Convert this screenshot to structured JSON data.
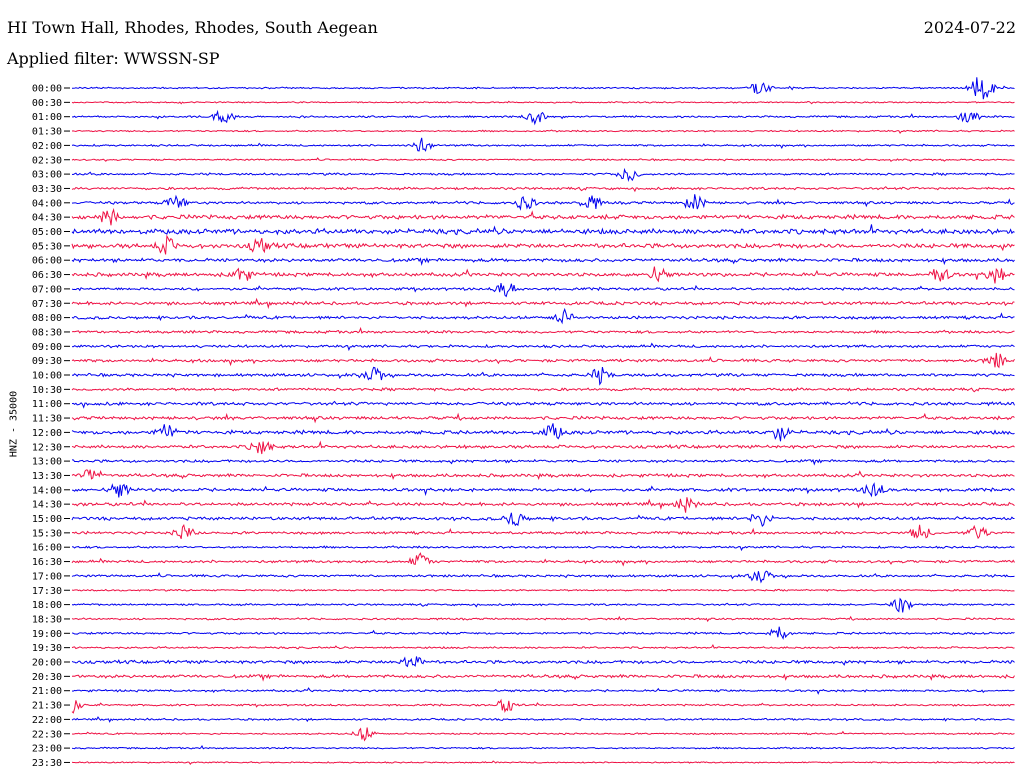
{
  "header": {
    "station": "HI Town Hall, Rhodes, Rhodes, South Aegean",
    "date": "2024-07-22",
    "filter": "Applied filter: WWSSN-SP"
  },
  "chart_data": {
    "type": "line",
    "title": "HI Town Hall, Rhodes, Rhodes, South Aegean",
    "subtitle": "Applied filter: WWSSN-SP",
    "ylabel": "HNZ - 35000",
    "xlabel": "",
    "row_labels": [
      "00:00",
      "00:30",
      "01:00",
      "01:30",
      "02:00",
      "02:30",
      "03:00",
      "03:30",
      "04:00",
      "04:30",
      "05:00",
      "05:30",
      "06:00",
      "06:30",
      "07:00",
      "07:30",
      "08:00",
      "08:30",
      "09:00",
      "09:30",
      "10:00",
      "10:30",
      "11:00",
      "11:30",
      "12:00",
      "12:30",
      "13:00",
      "13:30",
      "14:00",
      "14:30",
      "15:00",
      "15:30",
      "16:00",
      "16:30",
      "17:00",
      "17:30",
      "18:00",
      "18:30",
      "19:00",
      "19:30",
      "20:00",
      "20:30",
      "21:00",
      "21:30",
      "22:00",
      "22:30",
      "23:00",
      "23:30"
    ],
    "colors": [
      "#0000ee",
      "#ee1144"
    ],
    "noise_level": [
      0.6,
      0.5,
      0.7,
      0.6,
      0.7,
      0.6,
      0.8,
      0.9,
      1.0,
      1.6,
      1.9,
      1.7,
      1.3,
      1.4,
      1.0,
      1.2,
      1.1,
      1.0,
      1.0,
      1.1,
      1.1,
      1.0,
      1.2,
      1.2,
      1.4,
      1.2,
      1.0,
      1.2,
      1.2,
      1.2,
      1.2,
      1.0,
      0.8,
      1.0,
      0.9,
      0.6,
      0.7,
      0.7,
      0.8,
      0.7,
      1.2,
      1.2,
      0.8,
      0.7,
      0.7,
      0.6,
      0.6,
      0.5
    ],
    "events": [
      {
        "row": 0,
        "at": [
          0.73,
          0.96,
          0.97
        ]
      },
      {
        "row": 2,
        "at": [
          0.16,
          0.49,
          0.95
        ]
      },
      {
        "row": 4,
        "at": [
          0.37
        ]
      },
      {
        "row": 6,
        "at": [
          0.59
        ]
      },
      {
        "row": 8,
        "at": [
          0.11,
          0.48,
          0.55,
          0.66
        ]
      },
      {
        "row": 9,
        "at": [
          0.04
        ]
      },
      {
        "row": 11,
        "at": [
          0.1,
          0.2
        ]
      },
      {
        "row": 13,
        "at": [
          0.18,
          0.62,
          0.92,
          0.98
        ]
      },
      {
        "row": 14,
        "at": [
          0.46
        ]
      },
      {
        "row": 16,
        "at": [
          0.52
        ]
      },
      {
        "row": 19,
        "at": [
          0.98
        ]
      },
      {
        "row": 20,
        "at": [
          0.32,
          0.56
        ]
      },
      {
        "row": 24,
        "at": [
          0.1,
          0.51,
          0.75
        ]
      },
      {
        "row": 25,
        "at": [
          0.2
        ]
      },
      {
        "row": 27,
        "at": [
          0.02
        ]
      },
      {
        "row": 28,
        "at": [
          0.05,
          0.85
        ]
      },
      {
        "row": 29,
        "at": [
          0.65
        ]
      },
      {
        "row": 30,
        "at": [
          0.47,
          0.73
        ]
      },
      {
        "row": 31,
        "at": [
          0.12,
          0.9,
          0.96
        ]
      },
      {
        "row": 33,
        "at": [
          0.37
        ]
      },
      {
        "row": 34,
        "at": [
          0.73
        ]
      },
      {
        "row": 36,
        "at": [
          0.88
        ]
      },
      {
        "row": 38,
        "at": [
          0.75
        ]
      },
      {
        "row": 40,
        "at": [
          0.36
        ]
      },
      {
        "row": 43,
        "at": [
          0.0,
          0.46
        ]
      },
      {
        "row": 45,
        "at": [
          0.31
        ]
      }
    ]
  }
}
